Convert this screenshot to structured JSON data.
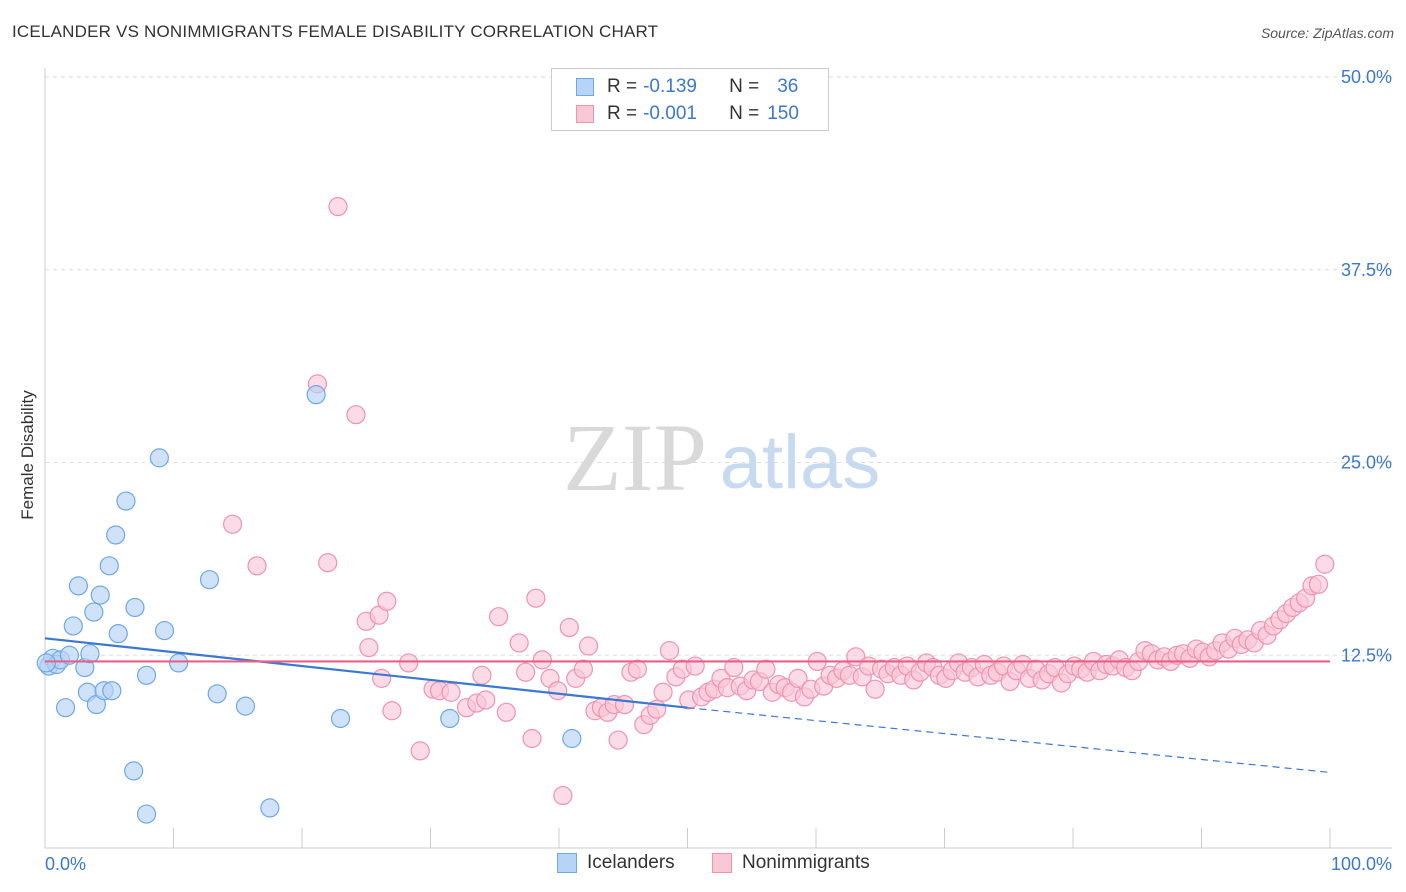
{
  "header": {
    "title": "ICELANDER VS NONIMMIGRANTS FEMALE DISABILITY CORRELATION CHART",
    "source": "Source: ZipAtlas.com"
  },
  "watermark": {
    "zip": "ZIP",
    "atlas": "atlas"
  },
  "legend": {
    "rows": [
      {
        "r_label": "R =",
        "r_value": "-0.139",
        "n_label": "N =",
        "n_value": "36",
        "color": "#6fa8e8",
        "fill": "#b7d3f5"
      },
      {
        "r_label": "R =",
        "r_value": "-0.001",
        "n_label": "N =",
        "n_value": "150",
        "color": "#f093b0",
        "fill": "#f9c8d7"
      }
    ]
  },
  "bottom_legend": {
    "items": [
      "Icelanders",
      "Nonimmigrants"
    ]
  },
  "chart_data": {
    "type": "scatter",
    "title": "ICELANDER VS NONIMMIGRANTS FEMALE DISABILITY CORRELATION CHART",
    "xlabel": "",
    "ylabel": "Female Disability",
    "xlim": [
      0,
      100
    ],
    "ylim": [
      0,
      50
    ],
    "x_tick_labels": [
      "0.0%",
      "100.0%"
    ],
    "y_ticks": [
      12.5,
      25.0,
      37.5,
      50.0
    ],
    "y_tick_labels": [
      "12.5%",
      "25.0%",
      "37.5%",
      "50.0%"
    ],
    "grid": "horizontal dashed",
    "legend_position": "top-center",
    "series": [
      {
        "name": "Icelanders",
        "color": "#3b78d1",
        "fill": "#b7d3f5",
        "r": -0.139,
        "n": 36,
        "trend": {
          "x0": 0,
          "y0": 13.6,
          "x1": 50,
          "y1": 9.1,
          "dashed_to_x": 100,
          "dashed_to_y": 4.9
        },
        "points": [
          [
            0.3,
            11.8
          ],
          [
            0.6,
            12.3
          ],
          [
            0.9,
            11.9
          ],
          [
            1.2,
            12.2
          ],
          [
            1.6,
            9.1
          ],
          [
            1.9,
            12.5
          ],
          [
            2.2,
            14.4
          ],
          [
            2.6,
            17.0
          ],
          [
            3.1,
            11.7
          ],
          [
            3.3,
            10.1
          ],
          [
            3.5,
            12.6
          ],
          [
            3.8,
            15.3
          ],
          [
            4.0,
            9.3
          ],
          [
            4.3,
            16.4
          ],
          [
            4.6,
            10.2
          ],
          [
            5.0,
            18.3
          ],
          [
            5.2,
            10.2
          ],
          [
            5.5,
            20.3
          ],
          [
            5.7,
            13.9
          ],
          [
            6.3,
            22.5
          ],
          [
            6.9,
            5.0
          ],
          [
            7.0,
            15.6
          ],
          [
            7.9,
            11.2
          ],
          [
            7.9,
            2.2
          ],
          [
            8.9,
            25.3
          ],
          [
            9.3,
            14.1
          ],
          [
            10.4,
            12.0
          ],
          [
            12.8,
            17.4
          ],
          [
            13.4,
            10.0
          ],
          [
            15.6,
            9.2
          ],
          [
            17.5,
            2.6
          ],
          [
            21.1,
            29.4
          ],
          [
            23.0,
            8.4
          ],
          [
            31.5,
            8.4
          ],
          [
            41.0,
            7.1
          ],
          [
            0.1,
            12.0
          ]
        ]
      },
      {
        "name": "Nonimmigrants",
        "color": "#e8608a",
        "fill": "#f9c8d7",
        "r": -0.001,
        "n": 150,
        "trend": {
          "x0": 0,
          "y0": 12.1,
          "x1": 100,
          "y1": 12.1
        },
        "points": [
          [
            16.5,
            18.3
          ],
          [
            21.2,
            30.1
          ],
          [
            22.0,
            18.5
          ],
          [
            22.8,
            41.6
          ],
          [
            24.2,
            28.1
          ],
          [
            25.0,
            14.7
          ],
          [
            25.2,
            13.0
          ],
          [
            26.0,
            15.1
          ],
          [
            26.2,
            11.0
          ],
          [
            26.6,
            16.0
          ],
          [
            27.0,
            8.9
          ],
          [
            28.3,
            12.0
          ],
          [
            29.2,
            6.3
          ],
          [
            30.2,
            10.3
          ],
          [
            30.7,
            10.2
          ],
          [
            31.6,
            10.1
          ],
          [
            32.8,
            9.1
          ],
          [
            33.6,
            9.4
          ],
          [
            34.0,
            11.2
          ],
          [
            34.3,
            9.6
          ],
          [
            35.3,
            15.0
          ],
          [
            35.9,
            8.8
          ],
          [
            36.9,
            13.3
          ],
          [
            37.4,
            11.4
          ],
          [
            37.9,
            7.1
          ],
          [
            38.2,
            16.2
          ],
          [
            38.7,
            12.2
          ],
          [
            39.3,
            11.0
          ],
          [
            39.9,
            10.2
          ],
          [
            40.3,
            3.4
          ],
          [
            40.8,
            14.3
          ],
          [
            41.3,
            11.0
          ],
          [
            41.9,
            11.6
          ],
          [
            42.3,
            13.1
          ],
          [
            42.8,
            8.9
          ],
          [
            43.3,
            9.1
          ],
          [
            43.8,
            8.8
          ],
          [
            44.3,
            9.3
          ],
          [
            44.6,
            7.0
          ],
          [
            45.1,
            9.3
          ],
          [
            45.6,
            11.4
          ],
          [
            46.1,
            11.6
          ],
          [
            46.6,
            8.0
          ],
          [
            47.1,
            8.6
          ],
          [
            47.6,
            9.0
          ],
          [
            48.1,
            10.1
          ],
          [
            48.6,
            12.8
          ],
          [
            49.1,
            11.1
          ],
          [
            49.6,
            11.6
          ],
          [
            50.1,
            9.6
          ],
          [
            50.6,
            11.8
          ],
          [
            51.1,
            9.8
          ],
          [
            51.6,
            10.1
          ],
          [
            52.1,
            10.3
          ],
          [
            52.6,
            11.0
          ],
          [
            53.1,
            10.4
          ],
          [
            53.6,
            11.7
          ],
          [
            54.1,
            10.5
          ],
          [
            54.6,
            10.2
          ],
          [
            55.1,
            10.9
          ],
          [
            55.6,
            10.8
          ],
          [
            56.1,
            11.6
          ],
          [
            56.6,
            10.1
          ],
          [
            57.1,
            10.6
          ],
          [
            57.6,
            10.4
          ],
          [
            58.1,
            10.1
          ],
          [
            58.6,
            11.0
          ],
          [
            59.1,
            9.8
          ],
          [
            59.6,
            10.3
          ],
          [
            60.1,
            12.1
          ],
          [
            60.6,
            10.5
          ],
          [
            61.1,
            11.2
          ],
          [
            61.6,
            11.0
          ],
          [
            62.1,
            11.5
          ],
          [
            62.6,
            11.2
          ],
          [
            63.1,
            12.4
          ],
          [
            63.6,
            11.1
          ],
          [
            64.1,
            11.8
          ],
          [
            64.6,
            10.3
          ],
          [
            65.1,
            11.6
          ],
          [
            65.6,
            11.3
          ],
          [
            66.1,
            11.7
          ],
          [
            66.6,
            11.2
          ],
          [
            67.1,
            11.8
          ],
          [
            67.6,
            10.9
          ],
          [
            68.1,
            11.4
          ],
          [
            68.6,
            12.0
          ],
          [
            69.1,
            11.7
          ],
          [
            69.6,
            11.2
          ],
          [
            70.1,
            11.0
          ],
          [
            70.6,
            11.5
          ],
          [
            71.1,
            12.0
          ],
          [
            71.6,
            11.4
          ],
          [
            72.1,
            11.7
          ],
          [
            72.6,
            11.1
          ],
          [
            73.1,
            11.9
          ],
          [
            73.6,
            11.2
          ],
          [
            74.1,
            11.4
          ],
          [
            74.6,
            11.8
          ],
          [
            75.1,
            10.8
          ],
          [
            75.6,
            11.5
          ],
          [
            76.1,
            11.9
          ],
          [
            76.6,
            11.0
          ],
          [
            77.1,
            11.6
          ],
          [
            77.6,
            10.9
          ],
          [
            78.1,
            11.3
          ],
          [
            78.6,
            11.7
          ],
          [
            79.1,
            10.7
          ],
          [
            79.6,
            11.3
          ],
          [
            80.1,
            11.8
          ],
          [
            80.6,
            11.6
          ],
          [
            81.1,
            11.4
          ],
          [
            81.6,
            12.1
          ],
          [
            82.1,
            11.5
          ],
          [
            82.6,
            11.9
          ],
          [
            83.1,
            11.8
          ],
          [
            83.6,
            12.2
          ],
          [
            84.1,
            11.7
          ],
          [
            84.6,
            11.5
          ],
          [
            85.1,
            12.1
          ],
          [
            85.6,
            12.8
          ],
          [
            86.1,
            12.6
          ],
          [
            86.6,
            12.2
          ],
          [
            87.1,
            12.4
          ],
          [
            87.6,
            12.1
          ],
          [
            88.1,
            12.5
          ],
          [
            88.6,
            12.6
          ],
          [
            89.1,
            12.3
          ],
          [
            89.6,
            12.9
          ],
          [
            90.1,
            12.7
          ],
          [
            90.6,
            12.4
          ],
          [
            91.1,
            12.8
          ],
          [
            91.6,
            13.3
          ],
          [
            92.1,
            12.9
          ],
          [
            92.6,
            13.6
          ],
          [
            93.1,
            13.2
          ],
          [
            93.6,
            13.5
          ],
          [
            94.1,
            13.3
          ],
          [
            94.6,
            14.1
          ],
          [
            95.1,
            13.8
          ],
          [
            95.6,
            14.4
          ],
          [
            96.1,
            14.8
          ],
          [
            96.6,
            15.2
          ],
          [
            97.1,
            15.6
          ],
          [
            97.6,
            15.9
          ],
          [
            98.1,
            16.2
          ],
          [
            98.6,
            17.0
          ],
          [
            99.1,
            17.1
          ],
          [
            99.6,
            18.4
          ],
          [
            14.6,
            21.0
          ]
        ]
      }
    ]
  }
}
